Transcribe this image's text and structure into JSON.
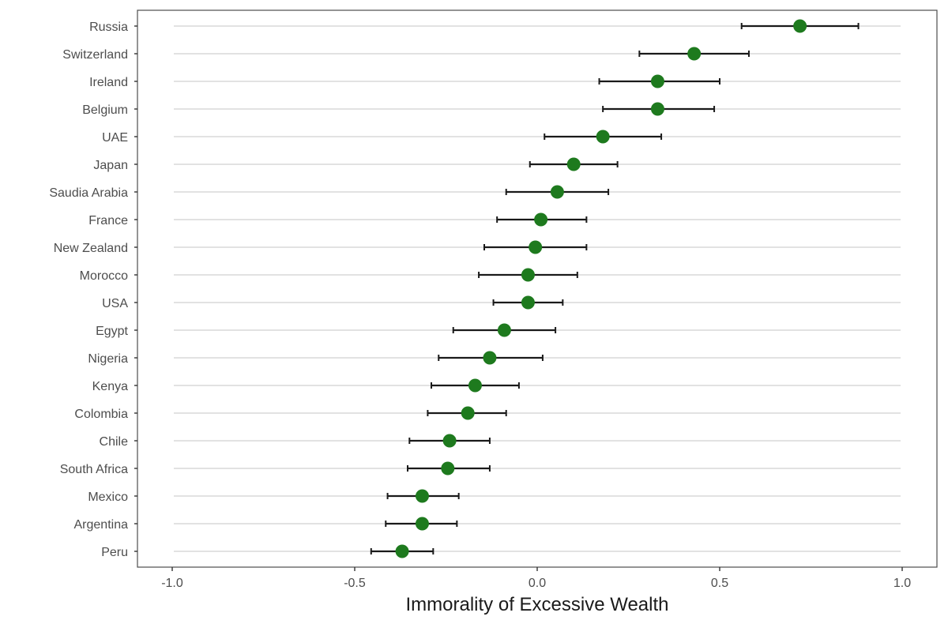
{
  "chart_data": {
    "type": "scatter",
    "subtype": "dot-plot-with-error-bars",
    "title": "",
    "xlabel": "Immorality of Excessive Wealth",
    "ylabel": "",
    "xlim": [
      -1.1,
      1.1
    ],
    "xticks": [
      -1.0,
      -0.5,
      0.0,
      0.5,
      1.0
    ],
    "xtick_labels": [
      "-1.0",
      "-0.5",
      "0.0",
      "0.5",
      "1.0"
    ],
    "grid": "horizontal major lines only",
    "legend": "none",
    "point_color": "#1e7a1e",
    "errorbar_color": "#1a1a1a",
    "categories": [
      "Russia",
      "Switzerland",
      "Ireland",
      "Belgium",
      "UAE",
      "Japan",
      "Saudia Arabia",
      "France",
      "New Zealand",
      "Morocco",
      "USA",
      "Egypt",
      "Nigeria",
      "Kenya",
      "Colombia",
      "Chile",
      "South Africa",
      "Mexico",
      "Argentina",
      "Peru"
    ],
    "values": [
      0.72,
      0.43,
      0.33,
      0.33,
      0.18,
      0.1,
      0.055,
      0.01,
      -0.005,
      -0.025,
      -0.025,
      -0.09,
      -0.13,
      -0.17,
      -0.19,
      -0.24,
      -0.245,
      -0.315,
      -0.315,
      -0.37
    ],
    "ci_lower": [
      0.56,
      0.28,
      0.17,
      0.18,
      0.02,
      -0.02,
      -0.085,
      -0.11,
      -0.145,
      -0.16,
      -0.12,
      -0.23,
      -0.27,
      -0.29,
      -0.3,
      -0.35,
      -0.355,
      -0.41,
      -0.415,
      -0.455
    ],
    "ci_upper": [
      0.88,
      0.58,
      0.5,
      0.485,
      0.34,
      0.22,
      0.195,
      0.135,
      0.135,
      0.11,
      0.07,
      0.05,
      0.015,
      -0.05,
      -0.085,
      -0.13,
      -0.13,
      -0.215,
      -0.22,
      -0.285
    ]
  }
}
